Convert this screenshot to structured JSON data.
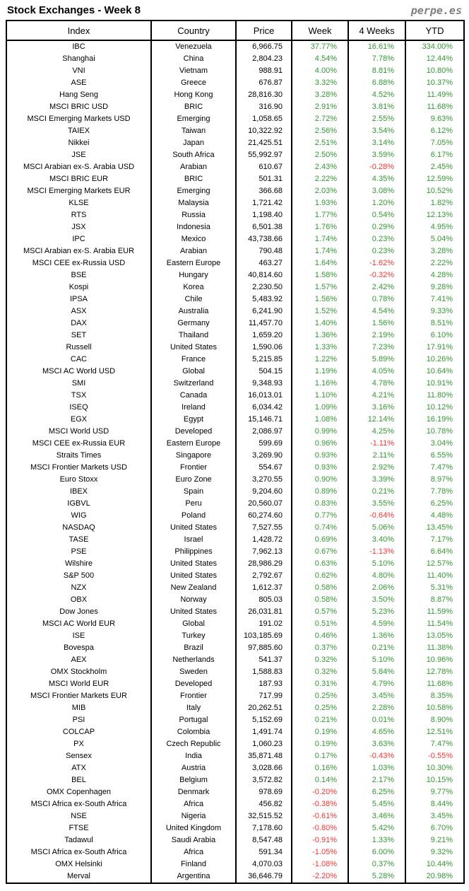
{
  "page": {
    "title": "Stock Exchanges - Week 8",
    "brand": "perpe.es"
  },
  "colors": {
    "positive": "#339933",
    "negative": "#ff3333",
    "border": "#000000",
    "brand": "#808080",
    "text": "#000000",
    "background": "#ffffff"
  },
  "chart_data": {
    "type": "table",
    "title": "Stock Exchanges - Week 8",
    "columns": [
      "Index",
      "Country",
      "Price",
      "Week",
      "4 Weeks",
      "YTD"
    ],
    "rows": [
      [
        "IBC",
        "Venezuela",
        "6,966.75",
        "37.77%",
        "16.61%",
        "334.00%"
      ],
      [
        "Shanghai",
        "China",
        "2,804.23",
        "4.54%",
        "7.78%",
        "12.44%"
      ],
      [
        "VNI",
        "Vietnam",
        "988.91",
        "4.00%",
        "8.81%",
        "10.80%"
      ],
      [
        "ASE",
        "Greece",
        "676.87",
        "3.32%",
        "6.88%",
        "10.37%"
      ],
      [
        "Hang Seng",
        "Hong Kong",
        "28,816.30",
        "3.28%",
        "4.52%",
        "11.49%"
      ],
      [
        "MSCI BRIC USD",
        "BRIC",
        "316.90",
        "2.91%",
        "3.81%",
        "11.68%"
      ],
      [
        "MSCI Emerging Markets USD",
        "Emerging",
        "1,058.65",
        "2.72%",
        "2.55%",
        "9.63%"
      ],
      [
        "TAIEX",
        "Taiwan",
        "10,322.92",
        "2.56%",
        "3.54%",
        "6.12%"
      ],
      [
        "Nikkei",
        "Japan",
        "21,425.51",
        "2.51%",
        "3.14%",
        "7.05%"
      ],
      [
        "JSE",
        "South Africa",
        "55,992.97",
        "2.50%",
        "3.59%",
        "6.17%"
      ],
      [
        "MSCI Arabian ex-S. Arabia USD",
        "Arabian",
        "610.67",
        "2.43%",
        "-0.28%",
        "2.45%"
      ],
      [
        "MSCI BRIC EUR",
        "BRIC",
        "501.31",
        "2.22%",
        "4.35%",
        "12.59%"
      ],
      [
        "MSCI Emerging Markets EUR",
        "Emerging",
        "366.68",
        "2.03%",
        "3.08%",
        "10.52%"
      ],
      [
        "KLSE",
        "Malaysia",
        "1,721.42",
        "1.93%",
        "1.20%",
        "1.82%"
      ],
      [
        "RTS",
        "Russia",
        "1,198.40",
        "1.77%",
        "0.54%",
        "12.13%"
      ],
      [
        "JSX",
        "Indonesia",
        "6,501.38",
        "1.76%",
        "0.29%",
        "4.95%"
      ],
      [
        "IPC",
        "Mexico",
        "43,738.66",
        "1.74%",
        "0.23%",
        "5.04%"
      ],
      [
        "MSCI Arabian ex-S. Arabia EUR",
        "Arabian",
        "790.48",
        "1.74%",
        "0.23%",
        "3.28%"
      ],
      [
        "MSCI CEE ex-Russia USD",
        "Eastern Europe",
        "463.27",
        "1.64%",
        "-1.62%",
        "2.22%"
      ],
      [
        "BSE",
        "Hungary",
        "40,814.60",
        "1.58%",
        "-0.32%",
        "4.28%"
      ],
      [
        "Kospi",
        "Korea",
        "2,230.50",
        "1.57%",
        "2.42%",
        "9.28%"
      ],
      [
        "IPSA",
        "Chile",
        "5,483.92",
        "1.56%",
        "0.78%",
        "7.41%"
      ],
      [
        "ASX",
        "Australia",
        "6,241.90",
        "1.52%",
        "4.54%",
        "9.33%"
      ],
      [
        "DAX",
        "Germany",
        "11,457.70",
        "1.40%",
        "1.56%",
        "8.51%"
      ],
      [
        "SET",
        "Thailand",
        "1,659.20",
        "1.36%",
        "2.19%",
        "6.10%"
      ],
      [
        "Russell",
        "United States",
        "1,590.06",
        "1.33%",
        "7.23%",
        "17.91%"
      ],
      [
        "CAC",
        "France",
        "5,215.85",
        "1.22%",
        "5.89%",
        "10.26%"
      ],
      [
        "MSCI AC World USD",
        "Global",
        "504.15",
        "1.19%",
        "4.05%",
        "10.64%"
      ],
      [
        "SMI",
        "Switzerland",
        "9,348.93",
        "1.16%",
        "4.78%",
        "10.91%"
      ],
      [
        "TSX",
        "Canada",
        "16,013.01",
        "1.10%",
        "4.21%",
        "11.80%"
      ],
      [
        "ISEQ",
        "Ireland",
        "6,034.42",
        "1.09%",
        "3.16%",
        "10.12%"
      ],
      [
        "EGX",
        "Egypt",
        "15,146.71",
        "1.08%",
        "12.14%",
        "16.19%"
      ],
      [
        "MSCI World USD",
        "Developed",
        "2,086.97",
        "0.99%",
        "4.25%",
        "10.78%"
      ],
      [
        "MSCI CEE ex-Russia EUR",
        "Eastern Europe",
        "599.69",
        "0.96%",
        "-1.11%",
        "3.04%"
      ],
      [
        "Straits Times",
        "Singapore",
        "3,269.90",
        "0.93%",
        "2.11%",
        "6.55%"
      ],
      [
        "MSCI Frontier Markets USD",
        "Frontier",
        "554.67",
        "0.93%",
        "2.92%",
        "7.47%"
      ],
      [
        "Euro Stoxx",
        "Euro Zone",
        "3,270.55",
        "0.90%",
        "3.39%",
        "8.97%"
      ],
      [
        "IBEX",
        "Spain",
        "9,204.60",
        "0.89%",
        "0.21%",
        "7.78%"
      ],
      [
        "IGBVL",
        "Peru",
        "20,560.07",
        "0.83%",
        "3.55%",
        "6.25%"
      ],
      [
        "WIG",
        "Poland",
        "60,274.60",
        "0.77%",
        "-0.64%",
        "4.48%"
      ],
      [
        "NASDAQ",
        "United States",
        "7,527.55",
        "0.74%",
        "5.06%",
        "13.45%"
      ],
      [
        "TASE",
        "Israel",
        "1,428.72",
        "0.69%",
        "3.40%",
        "7.17%"
      ],
      [
        "PSE",
        "Philippines",
        "7,962.13",
        "0.67%",
        "-1.13%",
        "6.64%"
      ],
      [
        "Wilshire",
        "United States",
        "28,986.29",
        "0.63%",
        "5.10%",
        "12.57%"
      ],
      [
        "S&P 500",
        "United States",
        "2,792.67",
        "0.62%",
        "4.80%",
        "11.40%"
      ],
      [
        "NZX",
        "New Zealand",
        "1,612.37",
        "0.58%",
        "2.06%",
        "5.31%"
      ],
      [
        "OBX",
        "Norway",
        "805.03",
        "0.58%",
        "3.50%",
        "8.87%"
      ],
      [
        "Dow Jones",
        "United States",
        "26,031.81",
        "0.57%",
        "5.23%",
        "11.59%"
      ],
      [
        "MSCI AC World EUR",
        "Global",
        "191.02",
        "0.51%",
        "4.59%",
        "11.54%"
      ],
      [
        "ISE",
        "Turkey",
        "103,185.69",
        "0.46%",
        "1.36%",
        "13.05%"
      ],
      [
        "Bovespa",
        "Brazil",
        "97,885.60",
        "0.37%",
        "0.21%",
        "11.38%"
      ],
      [
        "AEX",
        "Netherlands",
        "541.37",
        "0.32%",
        "5.10%",
        "10.96%"
      ],
      [
        "OMX Stockholm",
        "Sweden",
        "1,588.83",
        "0.32%",
        "5.84%",
        "12.78%"
      ],
      [
        "MSCI World EUR",
        "Developed",
        "187.93",
        "0.31%",
        "4.79%",
        "11.68%"
      ],
      [
        "MSCI Frontier Markets EUR",
        "Frontier",
        "717.99",
        "0.25%",
        "3.45%",
        "8.35%"
      ],
      [
        "MIB",
        "Italy",
        "20,262.51",
        "0.25%",
        "2.28%",
        "10.58%"
      ],
      [
        "PSI",
        "Portugal",
        "5,152.69",
        "0.21%",
        "0.01%",
        "8.90%"
      ],
      [
        "COLCAP",
        "Colombia",
        "1,491.74",
        "0.19%",
        "4.65%",
        "12.51%"
      ],
      [
        "PX",
        "Czech Republic",
        "1,060.23",
        "0.19%",
        "3.63%",
        "7.47%"
      ],
      [
        "Sensex",
        "India",
        "35,871.48",
        "0.17%",
        "-0.43%",
        "-0.55%"
      ],
      [
        "ATX",
        "Austria",
        "3,028.66",
        "0.16%",
        "1.03%",
        "10.30%"
      ],
      [
        "BEL",
        "Belgium",
        "3,572.82",
        "0.14%",
        "2.17%",
        "10.15%"
      ],
      [
        "OMX Copenhagen",
        "Denmark",
        "978.69",
        "-0.20%",
        "6.25%",
        "9.77%"
      ],
      [
        "MSCI Africa ex-South Africa",
        "Africa",
        "456.82",
        "-0.38%",
        "5.45%",
        "8.44%"
      ],
      [
        "NSE",
        "Nigeria",
        "32,515.52",
        "-0.61%",
        "3.46%",
        "3.45%"
      ],
      [
        "FTSE",
        "United Kingdom",
        "7,178.60",
        "-0.80%",
        "5.42%",
        "6.70%"
      ],
      [
        "Tadawul",
        "Saudi Arabia",
        "8,547.48",
        "-0.91%",
        "1.33%",
        "9.21%"
      ],
      [
        "MSCI Africa ex-South Africa",
        "Africa",
        "591.34",
        "-1.05%",
        "6.00%",
        "9.32%"
      ],
      [
        "OMX Helsinki",
        "Finland",
        "4,070.03",
        "-1.08%",
        "0.37%",
        "10.44%"
      ],
      [
        "Merval",
        "Argentina",
        "36,646.79",
        "-2.20%",
        "5.28%",
        "20.98%"
      ]
    ]
  }
}
